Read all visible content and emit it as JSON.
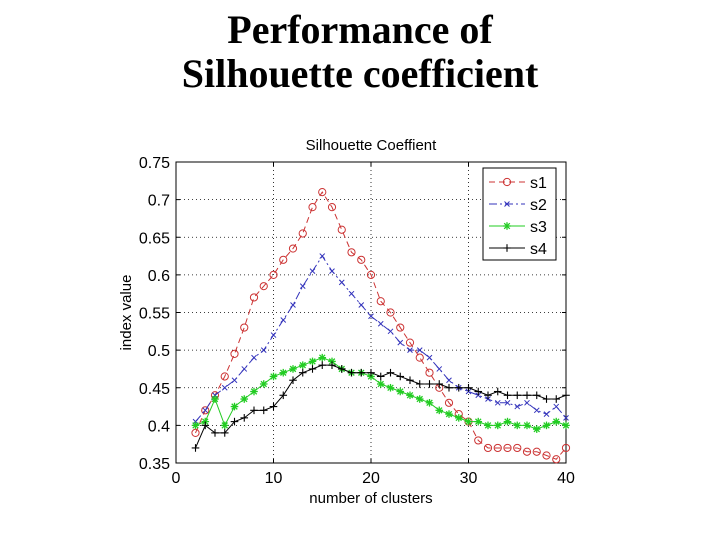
{
  "slide": {
    "title_line1": "Performance of",
    "title_line2": "Silhouette coefficient"
  },
  "chart_data": {
    "type": "line",
    "title": "Silhouette Coeffient",
    "xlabel": "number of clusters",
    "ylabel": "index value",
    "xlim": [
      0,
      40
    ],
    "ylim": [
      0.35,
      0.75
    ],
    "xticks": [
      0,
      10,
      20,
      30,
      40
    ],
    "yticks": [
      0.35,
      0.4,
      0.45,
      0.5,
      0.55,
      0.6,
      0.65,
      0.7,
      0.75
    ],
    "grid": true,
    "legend_position": "top-right",
    "x": [
      2,
      3,
      4,
      5,
      6,
      7,
      8,
      9,
      10,
      11,
      12,
      13,
      14,
      15,
      16,
      17,
      18,
      19,
      20,
      21,
      22,
      23,
      24,
      25,
      26,
      27,
      28,
      29,
      30,
      31,
      32,
      33,
      34,
      35,
      36,
      37,
      38,
      39,
      40
    ],
    "series": [
      {
        "name": "s1",
        "color": "#cc3333",
        "dash": "6,4",
        "marker": "circle",
        "values": [
          0.39,
          0.42,
          0.44,
          0.465,
          0.495,
          0.53,
          0.57,
          0.585,
          0.6,
          0.62,
          0.635,
          0.655,
          0.69,
          0.71,
          0.69,
          0.66,
          0.63,
          0.62,
          0.6,
          0.565,
          0.55,
          0.53,
          0.51,
          0.49,
          0.47,
          0.45,
          0.43,
          0.415,
          0.405,
          0.38,
          0.37,
          0.37,
          0.37,
          0.37,
          0.365,
          0.365,
          0.36,
          0.355,
          0.37
        ]
      },
      {
        "name": "s2",
        "color": "#3333bb",
        "dash": "8,3,2,3",
        "marker": "x",
        "values": [
          0.405,
          0.42,
          0.44,
          0.45,
          0.46,
          0.475,
          0.49,
          0.5,
          0.52,
          0.54,
          0.56,
          0.585,
          0.605,
          0.625,
          0.605,
          0.59,
          0.575,
          0.56,
          0.545,
          0.535,
          0.525,
          0.51,
          0.5,
          0.5,
          0.49,
          0.475,
          0.46,
          0.45,
          0.445,
          0.44,
          0.435,
          0.43,
          0.43,
          0.425,
          0.43,
          0.42,
          0.415,
          0.425,
          0.41
        ]
      },
      {
        "name": "s3",
        "color": "#22cc22",
        "dash": "none",
        "marker": "star",
        "values": [
          0.4,
          0.405,
          0.435,
          0.4,
          0.425,
          0.435,
          0.445,
          0.455,
          0.465,
          0.47,
          0.475,
          0.48,
          0.485,
          0.49,
          0.485,
          0.475,
          0.47,
          0.47,
          0.465,
          0.455,
          0.45,
          0.445,
          0.44,
          0.435,
          0.43,
          0.42,
          0.415,
          0.41,
          0.405,
          0.405,
          0.4,
          0.4,
          0.405,
          0.4,
          0.4,
          0.395,
          0.4,
          0.405,
          0.4
        ]
      },
      {
        "name": "s4",
        "color": "#000000",
        "dash": "none",
        "marker": "plus",
        "values": [
          0.37,
          0.4,
          0.39,
          0.39,
          0.405,
          0.41,
          0.42,
          0.42,
          0.425,
          0.44,
          0.46,
          0.47,
          0.475,
          0.48,
          0.48,
          0.475,
          0.47,
          0.47,
          0.47,
          0.465,
          0.47,
          0.465,
          0.46,
          0.455,
          0.455,
          0.455,
          0.45,
          0.45,
          0.45,
          0.445,
          0.44,
          0.445,
          0.44,
          0.44,
          0.44,
          0.44,
          0.435,
          0.435,
          0.44
        ]
      }
    ]
  }
}
